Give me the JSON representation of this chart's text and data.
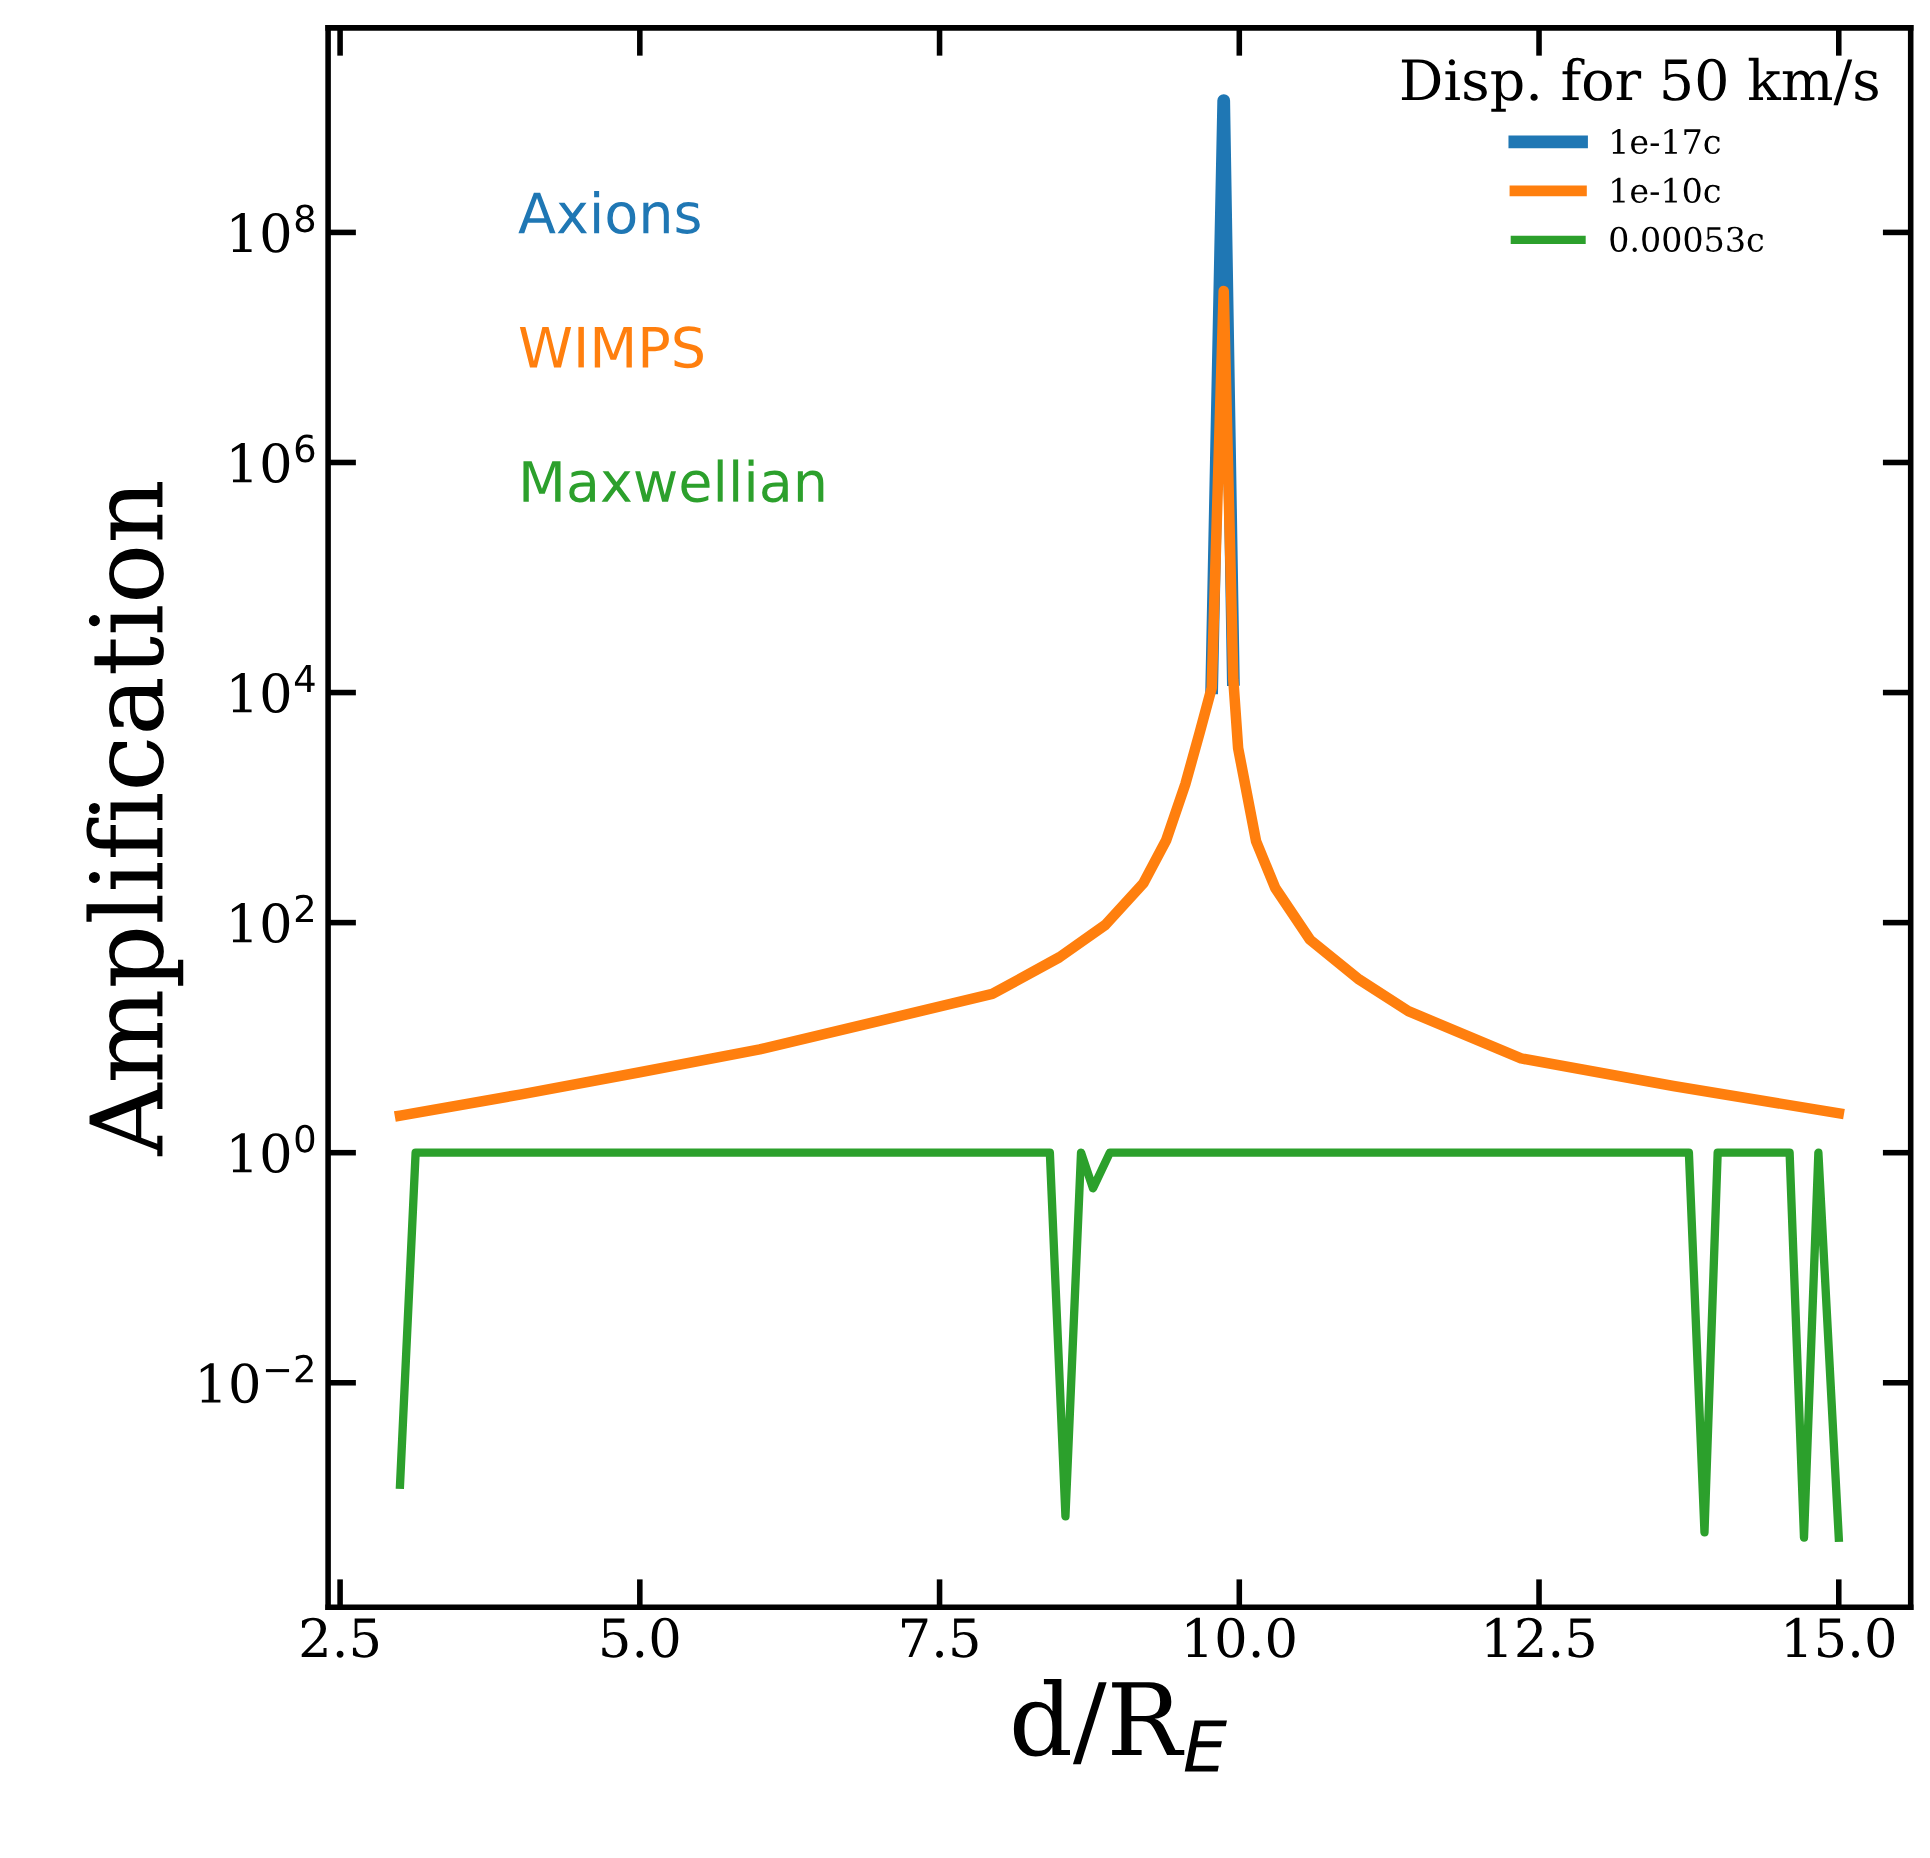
{
  "chart_data": {
    "type": "line",
    "xlabel": "d/R$_{E}$",
    "ylabel": "Amplification",
    "legend_title": "Disp. for 50 km/s",
    "legend": "top right",
    "log": "y",
    "grid": false,
    "line_style": "solid",
    "marker": "none",
    "xlim": [
      2.4,
      15.6
    ],
    "xticks": [
      {
        "value": 2.5,
        "label": "2.5"
      },
      {
        "value": 5.0,
        "label": "5.0"
      },
      {
        "value": 7.5,
        "label": "7.5"
      },
      {
        "value": 10.0,
        "label": "10.0"
      },
      {
        "value": 12.5,
        "label": "12.5"
      },
      {
        "value": 15.0,
        "label": "15.0"
      }
    ],
    "ylim": [
      0.000112,
      6000000000.0
    ],
    "yticks": [
      {
        "value": 0.01,
        "label": "10$^{−2}$"
      },
      {
        "value": 1,
        "label": "10$^{0}$"
      },
      {
        "value": 100,
        "label": "10$^{2}$"
      },
      {
        "value": 10000,
        "label": "10$^{4}$"
      },
      {
        "value": 1000000,
        "label": "10$^{6}$"
      },
      {
        "value": 100000000,
        "label": "10$^{8}$"
      }
    ],
    "annotations": [
      "Axions",
      "WIMPS",
      "Maxwellian"
    ],
    "series": [
      {
        "name": "1e-17c",
        "color": "#1f77b4",
        "x": [
          9.77,
          9.87,
          9.95
        ],
        "values": [
          11000,
          1400000000,
          13000
        ]
      },
      {
        "name": "1e-10c",
        "color": "#ff7f0e",
        "x": [
          3.0,
          4.0,
          5.0,
          6.0,
          7.0,
          7.94,
          8.5,
          8.88,
          9.2,
          9.39,
          9.55,
          9.67,
          9.77,
          9.87,
          9.95,
          9.99,
          10.14,
          10.3,
          10.59,
          11.0,
          11.41,
          12.35,
          13.62,
          15.0
        ],
        "values": [
          2.1,
          3.2,
          5.0,
          7.9,
          14,
          24,
          50,
          95,
          220,
          520,
          1600,
          4500,
          11000,
          31000000,
          13000,
          3300,
          510,
          200,
          71,
          32,
          17,
          6.6,
          3.8,
          2.2
        ]
      },
      {
        "name": "0.00053c",
        "color": "#2ca02c",
        "x": [
          3.0,
          3.13,
          8.42,
          8.55,
          8.68,
          8.78,
          8.92,
          13.75,
          13.88,
          13.99,
          14.59,
          14.71,
          14.83,
          15.0
        ],
        "values": [
          0.0013,
          1,
          1,
          0.00069,
          1,
          0.49,
          1,
          1,
          0.0005,
          1,
          1,
          0.00045,
          1,
          0.00045
        ]
      }
    ]
  }
}
